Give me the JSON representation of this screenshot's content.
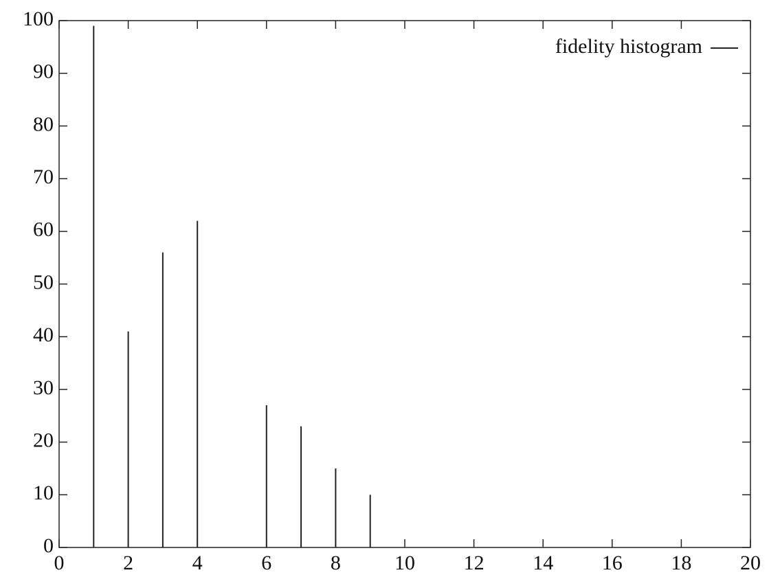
{
  "chart_data": {
    "type": "impulse",
    "x": [
      1,
      2,
      3,
      4,
      6,
      7,
      8,
      9
    ],
    "series": [
      {
        "name": "fidelity histogram",
        "color": "#222222",
        "values": [
          99,
          41,
          56,
          62,
          27,
          23,
          15,
          10
        ]
      }
    ],
    "xlim": [
      0,
      20
    ],
    "xticks": [
      0,
      2,
      4,
      6,
      8,
      10,
      12,
      14,
      16,
      18,
      20
    ],
    "ylim": [
      0,
      100
    ],
    "yticks": [
      0,
      10,
      20,
      30,
      40,
      50,
      60,
      70,
      80,
      90,
      100
    ],
    "grid": false,
    "legend": "top-right"
  }
}
